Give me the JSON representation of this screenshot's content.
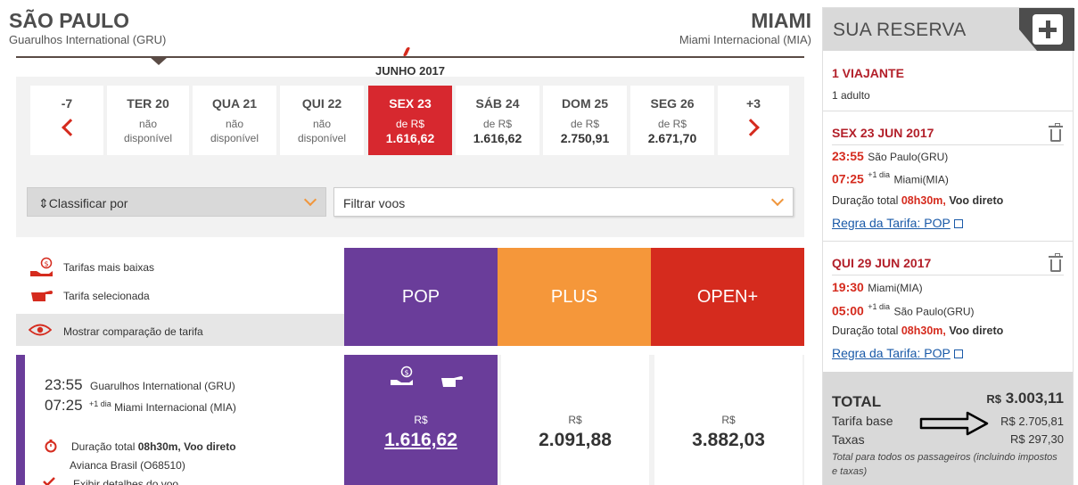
{
  "route": {
    "origin_city": "SÃO PAULO",
    "origin_airport": "Guarulhos International (GRU)",
    "destination_city": "MIAMI",
    "destination_airport": "Miami Internacional (MIA)"
  },
  "dates": {
    "month": "JUNHO 2017",
    "prev": "-7",
    "next": "+3",
    "days": [
      {
        "name": "TER 20",
        "line1": "não",
        "line2": "disponível",
        "price": ""
      },
      {
        "name": "QUA 21",
        "line1": "não",
        "line2": "disponível",
        "price": ""
      },
      {
        "name": "QUI 22",
        "line1": "não",
        "line2": "disponível",
        "price": ""
      },
      {
        "name": "SEX 23",
        "line1": "de R$",
        "line2": "",
        "price": "1.616,62"
      },
      {
        "name": "SÁB 24",
        "line1": "de R$",
        "line2": "",
        "price": "1.616,62"
      },
      {
        "name": "DOM 25",
        "line1": "de R$",
        "line2": "",
        "price": "2.750,91"
      },
      {
        "name": "SEG 26",
        "line1": "de R$",
        "line2": "",
        "price": "2.671,70"
      }
    ]
  },
  "filters": {
    "sort_label": "Classificar por",
    "filter_label": "Filtrar voos"
  },
  "legend": {
    "lowest": "Tarifas mais baixas",
    "selected": "Tarifa selecionada",
    "compare": "Mostrar comparação de tarifa"
  },
  "fares": {
    "pop": "POP",
    "plus": "PLUS",
    "open": "OPEN+"
  },
  "flight": {
    "dep_time": "23:55",
    "dep_place": "Guarulhos International (GRU)",
    "arr_time": "07:25",
    "arr_sup": "+1 dia",
    "arr_place": "Miami Internacional (MIA)",
    "duration_label": "Duração total",
    "duration_value": "08h30m, Voo direto",
    "carrier": "Avianca Brasil (O68510)",
    "details": "Exibir detalhes do voo",
    "currency": "R$",
    "price_pop": "1.616,62",
    "price_plus": "2.091,88",
    "price_open": "3.882,03"
  },
  "reservation": {
    "title": "SUA RESERVA",
    "travelers": "1 VIAJANTE",
    "adults": "1 adulto",
    "outbound": {
      "date": "SEX 23 JUN 2017",
      "dep_time": "23:55",
      "dep_place": "São Paulo(GRU)",
      "arr_time": "07:25",
      "arr_sup": "+1 dia",
      "arr_place": "Miami(MIA)",
      "duration_label": "Duração total",
      "duration_value": "08h30m,",
      "direct": "Voo direto",
      "rule": "Regra da Tarifa: POP"
    },
    "inbound": {
      "date": "QUI 29 JUN 2017",
      "dep_time": "19:30",
      "dep_place": "Miami(MIA)",
      "arr_time": "05:00",
      "arr_sup": "+1 dia",
      "arr_place": "São Paulo(GRU)",
      "duration_label": "Duração total",
      "duration_value": "08h30m,",
      "direct": "Voo direto",
      "rule": "Regra da Tarifa: POP"
    },
    "totals": {
      "total_label": "TOTAL",
      "total_currency": "R$",
      "total_value": "3.003,11",
      "base_label": "Tarifa base",
      "base_value": "R$ 2.705,81",
      "tax_label": "Taxas",
      "tax_value": "R$ 297,30",
      "note": "Total para todos os passageiros (incluindo impostos e taxas)"
    }
  },
  "colors": {
    "pop": "#6a3d9a",
    "plus": "#f5973a",
    "open": "#d52b1e",
    "accent_red": "#d7282f"
  }
}
